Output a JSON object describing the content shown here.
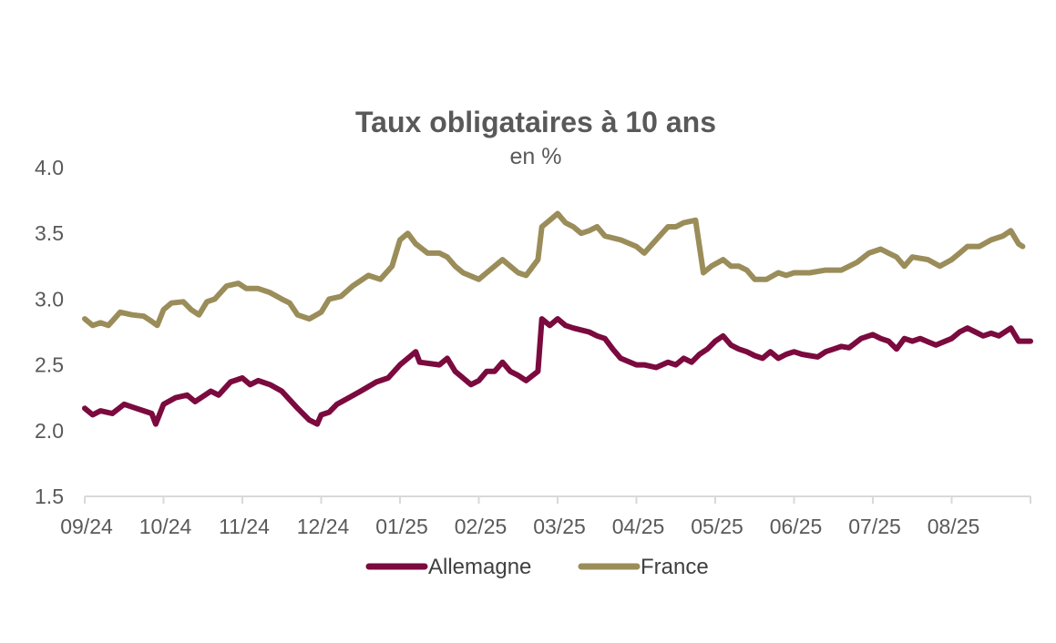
{
  "chart_data": {
    "type": "line",
    "title": "Taux obligataires à 10 ans",
    "subtitle": "en %",
    "ylim": [
      1.5,
      4.0
    ],
    "y_ticks": [
      "4.0",
      "3.5",
      "3.0",
      "2.5",
      "2.0",
      "1.5"
    ],
    "x_ticks": [
      "09/24",
      "10/24",
      "11/24",
      "12/24",
      "01/25",
      "02/25",
      "03/25",
      "04/25",
      "05/25",
      "06/25",
      "07/25",
      "08/25"
    ],
    "grid": false,
    "legend_position": "bottom",
    "series": [
      {
        "name": "Allemagne",
        "color": "#7B0A3E",
        "points": [
          [
            0,
            2.17
          ],
          [
            0.1,
            2.12
          ],
          [
            0.2,
            2.15
          ],
          [
            0.35,
            2.13
          ],
          [
            0.5,
            2.2
          ],
          [
            0.6,
            2.18
          ],
          [
            0.75,
            2.15
          ],
          [
            0.85,
            2.13
          ],
          [
            0.9,
            2.05
          ],
          [
            1.0,
            2.2
          ],
          [
            1.15,
            2.25
          ],
          [
            1.3,
            2.27
          ],
          [
            1.4,
            2.22
          ],
          [
            1.5,
            2.26
          ],
          [
            1.6,
            2.3
          ],
          [
            1.7,
            2.27
          ],
          [
            1.85,
            2.37
          ],
          [
            2.0,
            2.4
          ],
          [
            2.1,
            2.35
          ],
          [
            2.2,
            2.38
          ],
          [
            2.35,
            2.35
          ],
          [
            2.5,
            2.3
          ],
          [
            2.7,
            2.17
          ],
          [
            2.85,
            2.08
          ],
          [
            2.95,
            2.05
          ],
          [
            3.0,
            2.12
          ],
          [
            3.1,
            2.14
          ],
          [
            3.2,
            2.2
          ],
          [
            3.35,
            2.25
          ],
          [
            3.5,
            2.3
          ],
          [
            3.7,
            2.37
          ],
          [
            3.85,
            2.4
          ],
          [
            4.0,
            2.5
          ],
          [
            4.1,
            2.55
          ],
          [
            4.2,
            2.6
          ],
          [
            4.25,
            2.52
          ],
          [
            4.5,
            2.5
          ],
          [
            4.6,
            2.55
          ],
          [
            4.7,
            2.45
          ],
          [
            4.8,
            2.4
          ],
          [
            4.9,
            2.35
          ],
          [
            5.0,
            2.38
          ],
          [
            5.1,
            2.45
          ],
          [
            5.2,
            2.45
          ],
          [
            5.3,
            2.52
          ],
          [
            5.4,
            2.45
          ],
          [
            5.5,
            2.42
          ],
          [
            5.6,
            2.38
          ],
          [
            5.75,
            2.45
          ],
          [
            5.8,
            2.85
          ],
          [
            5.9,
            2.8
          ],
          [
            6.0,
            2.85
          ],
          [
            6.1,
            2.8
          ],
          [
            6.2,
            2.78
          ],
          [
            6.4,
            2.75
          ],
          [
            6.5,
            2.72
          ],
          [
            6.6,
            2.7
          ],
          [
            6.7,
            2.62
          ],
          [
            6.8,
            2.55
          ],
          [
            7.0,
            2.5
          ],
          [
            7.1,
            2.5
          ],
          [
            7.25,
            2.48
          ],
          [
            7.4,
            2.52
          ],
          [
            7.5,
            2.5
          ],
          [
            7.6,
            2.55
          ],
          [
            7.7,
            2.52
          ],
          [
            7.8,
            2.58
          ],
          [
            7.9,
            2.62
          ],
          [
            8.0,
            2.68
          ],
          [
            8.1,
            2.72
          ],
          [
            8.2,
            2.65
          ],
          [
            8.3,
            2.62
          ],
          [
            8.4,
            2.6
          ],
          [
            8.5,
            2.57
          ],
          [
            8.6,
            2.55
          ],
          [
            8.7,
            2.6
          ],
          [
            8.8,
            2.55
          ],
          [
            8.9,
            2.58
          ],
          [
            9.0,
            2.6
          ],
          [
            9.1,
            2.58
          ],
          [
            9.2,
            2.57
          ],
          [
            9.3,
            2.56
          ],
          [
            9.4,
            2.6
          ],
          [
            9.5,
            2.62
          ],
          [
            9.6,
            2.64
          ],
          [
            9.7,
            2.63
          ],
          [
            9.85,
            2.7
          ],
          [
            10.0,
            2.73
          ],
          [
            10.1,
            2.7
          ],
          [
            10.2,
            2.68
          ],
          [
            10.3,
            2.62
          ],
          [
            10.4,
            2.7
          ],
          [
            10.5,
            2.68
          ],
          [
            10.6,
            2.7
          ],
          [
            10.8,
            2.65
          ],
          [
            11.0,
            2.7
          ],
          [
            11.1,
            2.75
          ],
          [
            11.2,
            2.78
          ],
          [
            11.3,
            2.75
          ],
          [
            11.4,
            2.72
          ],
          [
            11.5,
            2.74
          ],
          [
            11.6,
            2.72
          ],
          [
            11.75,
            2.78
          ],
          [
            11.85,
            2.68
          ],
          [
            12.0,
            2.68
          ]
        ]
      },
      {
        "name": "France",
        "color": "#9A8D5A",
        "points": [
          [
            0,
            2.85
          ],
          [
            0.1,
            2.8
          ],
          [
            0.2,
            2.82
          ],
          [
            0.3,
            2.8
          ],
          [
            0.45,
            2.9
          ],
          [
            0.6,
            2.88
          ],
          [
            0.75,
            2.87
          ],
          [
            0.85,
            2.83
          ],
          [
            0.92,
            2.8
          ],
          [
            1.0,
            2.92
          ],
          [
            1.1,
            2.97
          ],
          [
            1.25,
            2.98
          ],
          [
            1.35,
            2.92
          ],
          [
            1.45,
            2.88
          ],
          [
            1.55,
            2.98
          ],
          [
            1.65,
            3.0
          ],
          [
            1.8,
            3.1
          ],
          [
            1.95,
            3.12
          ],
          [
            2.05,
            3.08
          ],
          [
            2.2,
            3.08
          ],
          [
            2.35,
            3.05
          ],
          [
            2.5,
            3.0
          ],
          [
            2.6,
            2.97
          ],
          [
            2.7,
            2.88
          ],
          [
            2.85,
            2.85
          ],
          [
            3.0,
            2.9
          ],
          [
            3.1,
            3.0
          ],
          [
            3.25,
            3.02
          ],
          [
            3.4,
            3.1
          ],
          [
            3.6,
            3.18
          ],
          [
            3.75,
            3.15
          ],
          [
            3.9,
            3.25
          ],
          [
            4.0,
            3.45
          ],
          [
            4.1,
            3.5
          ],
          [
            4.2,
            3.42
          ],
          [
            4.35,
            3.35
          ],
          [
            4.5,
            3.35
          ],
          [
            4.6,
            3.32
          ],
          [
            4.7,
            3.25
          ],
          [
            4.8,
            3.2
          ],
          [
            5.0,
            3.15
          ],
          [
            5.1,
            3.2
          ],
          [
            5.2,
            3.25
          ],
          [
            5.3,
            3.3
          ],
          [
            5.4,
            3.25
          ],
          [
            5.5,
            3.2
          ],
          [
            5.6,
            3.18
          ],
          [
            5.75,
            3.3
          ],
          [
            5.8,
            3.55
          ],
          [
            5.9,
            3.6
          ],
          [
            6.0,
            3.65
          ],
          [
            6.1,
            3.58
          ],
          [
            6.2,
            3.55
          ],
          [
            6.3,
            3.5
          ],
          [
            6.4,
            3.52
          ],
          [
            6.5,
            3.55
          ],
          [
            6.6,
            3.48
          ],
          [
            6.8,
            3.45
          ],
          [
            7.0,
            3.4
          ],
          [
            7.1,
            3.35
          ],
          [
            7.25,
            3.45
          ],
          [
            7.4,
            3.55
          ],
          [
            7.5,
            3.55
          ],
          [
            7.6,
            3.58
          ],
          [
            7.75,
            3.6
          ],
          [
            7.85,
            3.2
          ],
          [
            7.95,
            3.25
          ],
          [
            8.1,
            3.3
          ],
          [
            8.2,
            3.25
          ],
          [
            8.3,
            3.25
          ],
          [
            8.4,
            3.22
          ],
          [
            8.5,
            3.15
          ],
          [
            8.65,
            3.15
          ],
          [
            8.8,
            3.2
          ],
          [
            8.9,
            3.18
          ],
          [
            9.0,
            3.2
          ],
          [
            9.2,
            3.2
          ],
          [
            9.4,
            3.22
          ],
          [
            9.6,
            3.22
          ],
          [
            9.8,
            3.28
          ],
          [
            9.95,
            3.35
          ],
          [
            10.1,
            3.38
          ],
          [
            10.2,
            3.35
          ],
          [
            10.3,
            3.32
          ],
          [
            10.4,
            3.25
          ],
          [
            10.5,
            3.32
          ],
          [
            10.7,
            3.3
          ],
          [
            10.85,
            3.25
          ],
          [
            11.0,
            3.3
          ],
          [
            11.1,
            3.35
          ],
          [
            11.2,
            3.4
          ],
          [
            11.35,
            3.4
          ],
          [
            11.5,
            3.45
          ],
          [
            11.65,
            3.48
          ],
          [
            11.75,
            3.52
          ],
          [
            11.85,
            3.42
          ],
          [
            11.9,
            3.4
          ]
        ]
      }
    ]
  }
}
